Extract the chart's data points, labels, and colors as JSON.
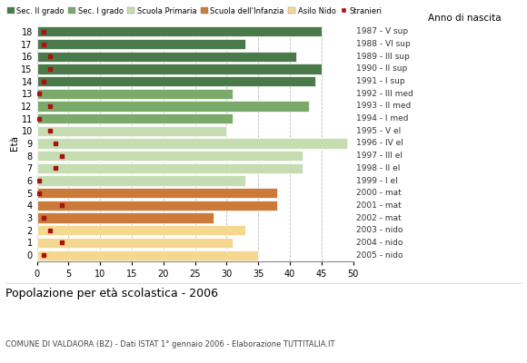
{
  "ages": [
    18,
    17,
    16,
    15,
    14,
    13,
    12,
    11,
    10,
    9,
    8,
    7,
    6,
    5,
    4,
    3,
    2,
    1,
    0
  ],
  "bar_values": [
    45,
    33,
    41,
    45,
    44,
    31,
    43,
    31,
    30,
    49,
    42,
    42,
    33,
    38,
    38,
    28,
    33,
    31,
    35
  ],
  "stranieri_values": [
    1,
    1,
    2,
    2,
    1,
    0.3,
    2,
    0.3,
    2,
    3,
    4,
    3,
    0.3,
    0.3,
    4,
    1,
    2,
    4,
    1
  ],
  "bar_colors": [
    "#4a7a4a",
    "#4a7a4a",
    "#4a7a4a",
    "#4a7a4a",
    "#4a7a4a",
    "#7aaa6a",
    "#7aaa6a",
    "#7aaa6a",
    "#c5ddb0",
    "#c5ddb0",
    "#c5ddb0",
    "#c5ddb0",
    "#c5ddb0",
    "#cc7a3a",
    "#cc7a3a",
    "#cc7a3a",
    "#f5d890",
    "#f5d890",
    "#f5d890"
  ],
  "year_labels": [
    "1987 - V sup",
    "1988 - VI sup",
    "1989 - III sup",
    "1990 - II sup",
    "1991 - I sup",
    "1992 - III med",
    "1993 - II med",
    "1994 - I med",
    "1995 - V el",
    "1996 - IV el",
    "1997 - III el",
    "1998 - II el",
    "1999 - I el",
    "2000 - mat",
    "2001 - mat",
    "2002 - mat",
    "2003 - nido",
    "2004 - nido",
    "2005 - nido"
  ],
  "legend_labels": [
    "Sec. II grado",
    "Sec. I grado",
    "Scuola Primaria",
    "Scuola dell'Infanzia",
    "Asilo Nido",
    "Stranieri"
  ],
  "legend_colors": [
    "#4a7a4a",
    "#7aaa6a",
    "#c5ddb0",
    "#cc7a3a",
    "#f5d890",
    "#aa1111"
  ],
  "title": "Popolazione per età scolastica - 2006",
  "subtitle": "COMUNE DI VALDAORA (BZ) - Dati ISTAT 1° gennaio 2006 - Elaborazione TUTTITALIA.IT",
  "xlabel_eta": "Età",
  "ylabel_anno": "Anno di nascita",
  "xlim": [
    0,
    50
  ],
  "xticks": [
    0,
    5,
    10,
    15,
    20,
    25,
    30,
    35,
    40,
    45,
    50
  ],
  "stranieri_color": "#aa1111",
  "bar_height": 0.82,
  "background_color": "#ffffff",
  "grid_color": "#bbbbbb"
}
